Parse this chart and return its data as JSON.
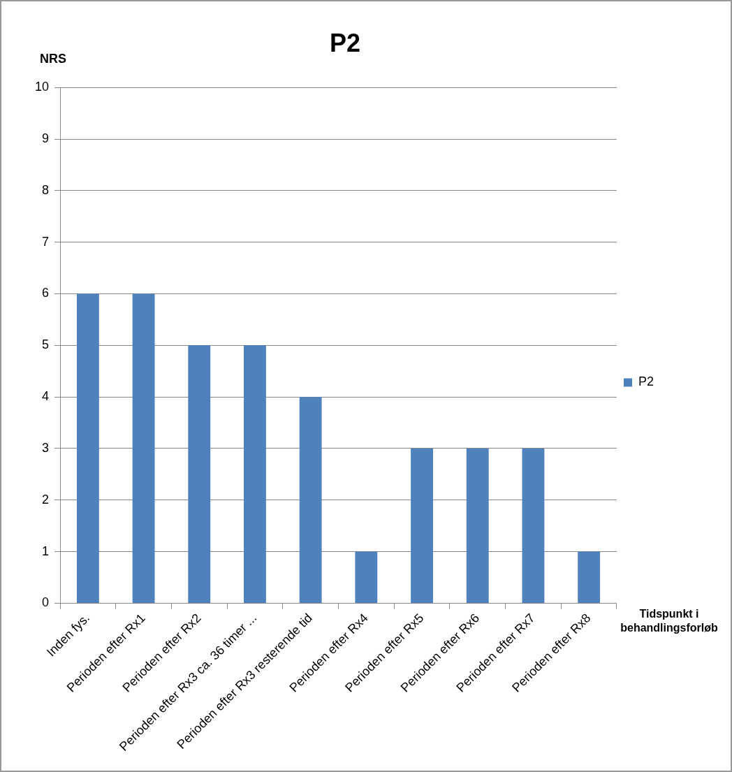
{
  "chart_data": {
    "type": "bar",
    "title": "P2",
    "ylabel": "NRS",
    "xlabel": "Tidspunkt i behandlingsforløb",
    "categories": [
      "Inden fys.",
      "Perioden efter Rx1",
      "Perioden efter Rx2",
      "Perioden efter Rx3 ca. 36 timer ...",
      "Perioden efter Rx3 resterende tid",
      "Perioden efter Rx4",
      "Perioden efter Rx5",
      "Perioden efter Rx6",
      "Perioden efter Rx7",
      "Perioden efter Rx8"
    ],
    "series": [
      {
        "name": "P2",
        "color": "#4f81bd",
        "values": [
          6,
          6,
          5,
          5,
          4,
          1,
          3,
          3,
          3,
          1
        ]
      }
    ],
    "ylim": [
      0,
      10
    ],
    "yticks": [
      0,
      1,
      2,
      3,
      4,
      5,
      6,
      7,
      8,
      9,
      10
    ],
    "grid": "y",
    "legend": "right"
  }
}
